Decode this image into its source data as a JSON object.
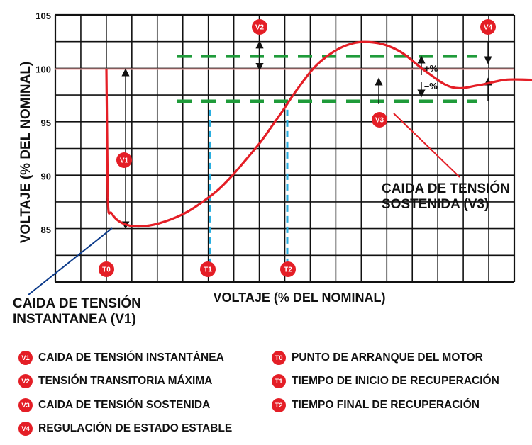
{
  "chart_data": {
    "type": "line",
    "ylabel": "VOLTAJE (% DEL NOMINAL)",
    "xlabel": "VOLTAJE (% DEL NOMINAL)",
    "ylim": [
      80,
      105
    ],
    "yticks": [
      85,
      90,
      95,
      100,
      105
    ],
    "grid": true,
    "nominal_line": 100,
    "tolerance_band": [
      97,
      101.2
    ],
    "tolerance_labels": {
      "plus": "+%",
      "minus": "–%"
    },
    "series": [
      {
        "values_desc": "voltage response",
        "x": [
          0,
          0.05,
          0.2,
          0.6,
          1.2,
          2.0,
          3.0,
          4.0,
          4.6,
          5.2,
          5.8,
          6.2,
          6.6,
          7.2,
          8.0,
          9.0,
          10.0,
          11.0,
          12.0,
          13.0,
          14.0,
          15.0,
          16.0,
          17.0,
          18.0,
          19.0
        ],
        "values": [
          100,
          88,
          86.5,
          85.6,
          85.3,
          85.6,
          86.6,
          88.3,
          89.7,
          91.4,
          93.2,
          94.6,
          96.0,
          98.2,
          100.6,
          102.2,
          102.5,
          101.7,
          99.8,
          98.3,
          98.5,
          99.0,
          99.0,
          99.0,
          99.0,
          99.0
        ]
      }
    ],
    "time_markers": [
      {
        "id": "T0",
        "x": 0
      },
      {
        "id": "T1",
        "x": 3.9
      },
      {
        "id": "T2",
        "x": 6.8
      }
    ],
    "points": [
      {
        "id": "V1",
        "text": "V1"
      },
      {
        "id": "V2",
        "text": "V2"
      },
      {
        "id": "V3",
        "text": "V3"
      },
      {
        "id": "V4",
        "text": "V4"
      }
    ],
    "annotations": {
      "v1_callout": [
        "CAIDA DE TENSIÓN",
        "INSTANTANEA (V1)"
      ],
      "v3_callout": [
        "CAIDA DE TENSIÓN",
        "SOSTENIDA (V3)"
      ]
    }
  },
  "legend": {
    "left": [
      {
        "badge": "V1",
        "label": "CAIDA DE TENSIÓN INSTANTÁNEA"
      },
      {
        "badge": "V2",
        "label": "TENSIÓN TRANSITORIA MÁXIMA"
      },
      {
        "badge": "V3",
        "label": "CAIDA DE TENSIÓN SOSTENIDA"
      },
      {
        "badge": "V4",
        "label": "REGULACIÓN DE ESTADO ESTABLE"
      }
    ],
    "right": [
      {
        "badge": "T0",
        "label": "PUNTO DE ARRANQUE DEL MOTOR"
      },
      {
        "badge": "T1",
        "label": "TIEMPO DE INICIO DE RECUPERACIÓN"
      },
      {
        "badge": "T2",
        "label": "TIEMPO FINAL DE RECUPERACIÓN"
      }
    ]
  },
  "colors": {
    "curve": "#e41e26",
    "nominal": "#f4a3a3",
    "band": "#1f9b3a",
    "marker": "#29aee0",
    "callout": "#0b3a8a",
    "grid": "#111111"
  }
}
